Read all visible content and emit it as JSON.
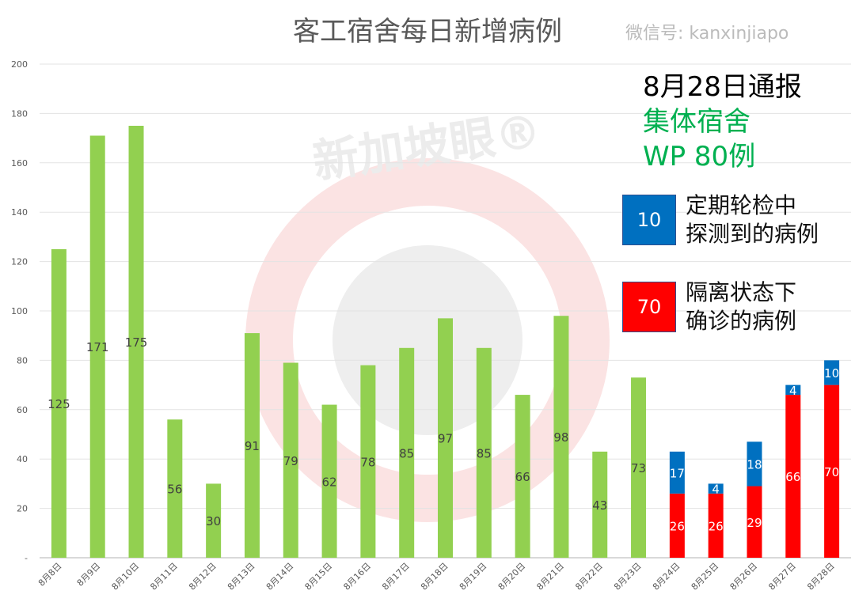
{
  "chart_data": {
    "type": "bar",
    "stacked": true,
    "title": "客工宿舍每日新增病例",
    "categories": [
      "8月8日",
      "8月9日",
      "8月10日",
      "8月11日",
      "8月12日",
      "8月13日",
      "8月14日",
      "8月15日",
      "8月16日",
      "8月17日",
      "8月18日",
      "8月19日",
      "8月20日",
      "8月21日",
      "8月22日",
      "8月23日",
      "8月24日",
      "8月25日",
      "8月26日",
      "8月27日",
      "8月28日"
    ],
    "series": [
      {
        "color": "#92d050",
        "values": [
          125,
          171,
          175,
          56,
          30,
          91,
          79,
          62,
          78,
          85,
          97,
          85,
          66,
          98,
          43,
          73,
          null,
          null,
          null,
          null,
          null
        ]
      },
      {
        "name": "隔离状态下确诊的病例",
        "color": "#ff0000",
        "values": [
          null,
          null,
          null,
          null,
          null,
          null,
          null,
          null,
          null,
          null,
          null,
          null,
          null,
          null,
          null,
          null,
          26,
          26,
          29,
          66,
          70
        ]
      },
      {
        "name": "定期轮检中探测到的病例",
        "color": "#0070c0",
        "values": [
          null,
          null,
          null,
          null,
          null,
          null,
          null,
          null,
          null,
          null,
          null,
          null,
          null,
          null,
          null,
          null,
          17,
          4,
          18,
          4,
          10
        ]
      }
    ],
    "ylim": [
      0,
      200
    ],
    "yticks": [
      "-",
      "20",
      "40",
      "60",
      "80",
      "100",
      "120",
      "140",
      "160",
      "180",
      "200"
    ],
    "grid": true,
    "legend_placement": "right"
  },
  "annotation": {
    "headline": "8月28日通报",
    "line2": "集体宿舍",
    "line3": "WP 80例",
    "legend_blue_value": "10",
    "legend_blue_line1": "定期轮检中",
    "legend_blue_line2": "探测到的病例",
    "legend_red_value": "70",
    "legend_red_line1": "隔离状态下",
    "legend_red_line2": "确诊的病例"
  },
  "watermark": {
    "logo_text": "新加坡眼®",
    "wechat": "微信号: kanxinjiapo"
  }
}
